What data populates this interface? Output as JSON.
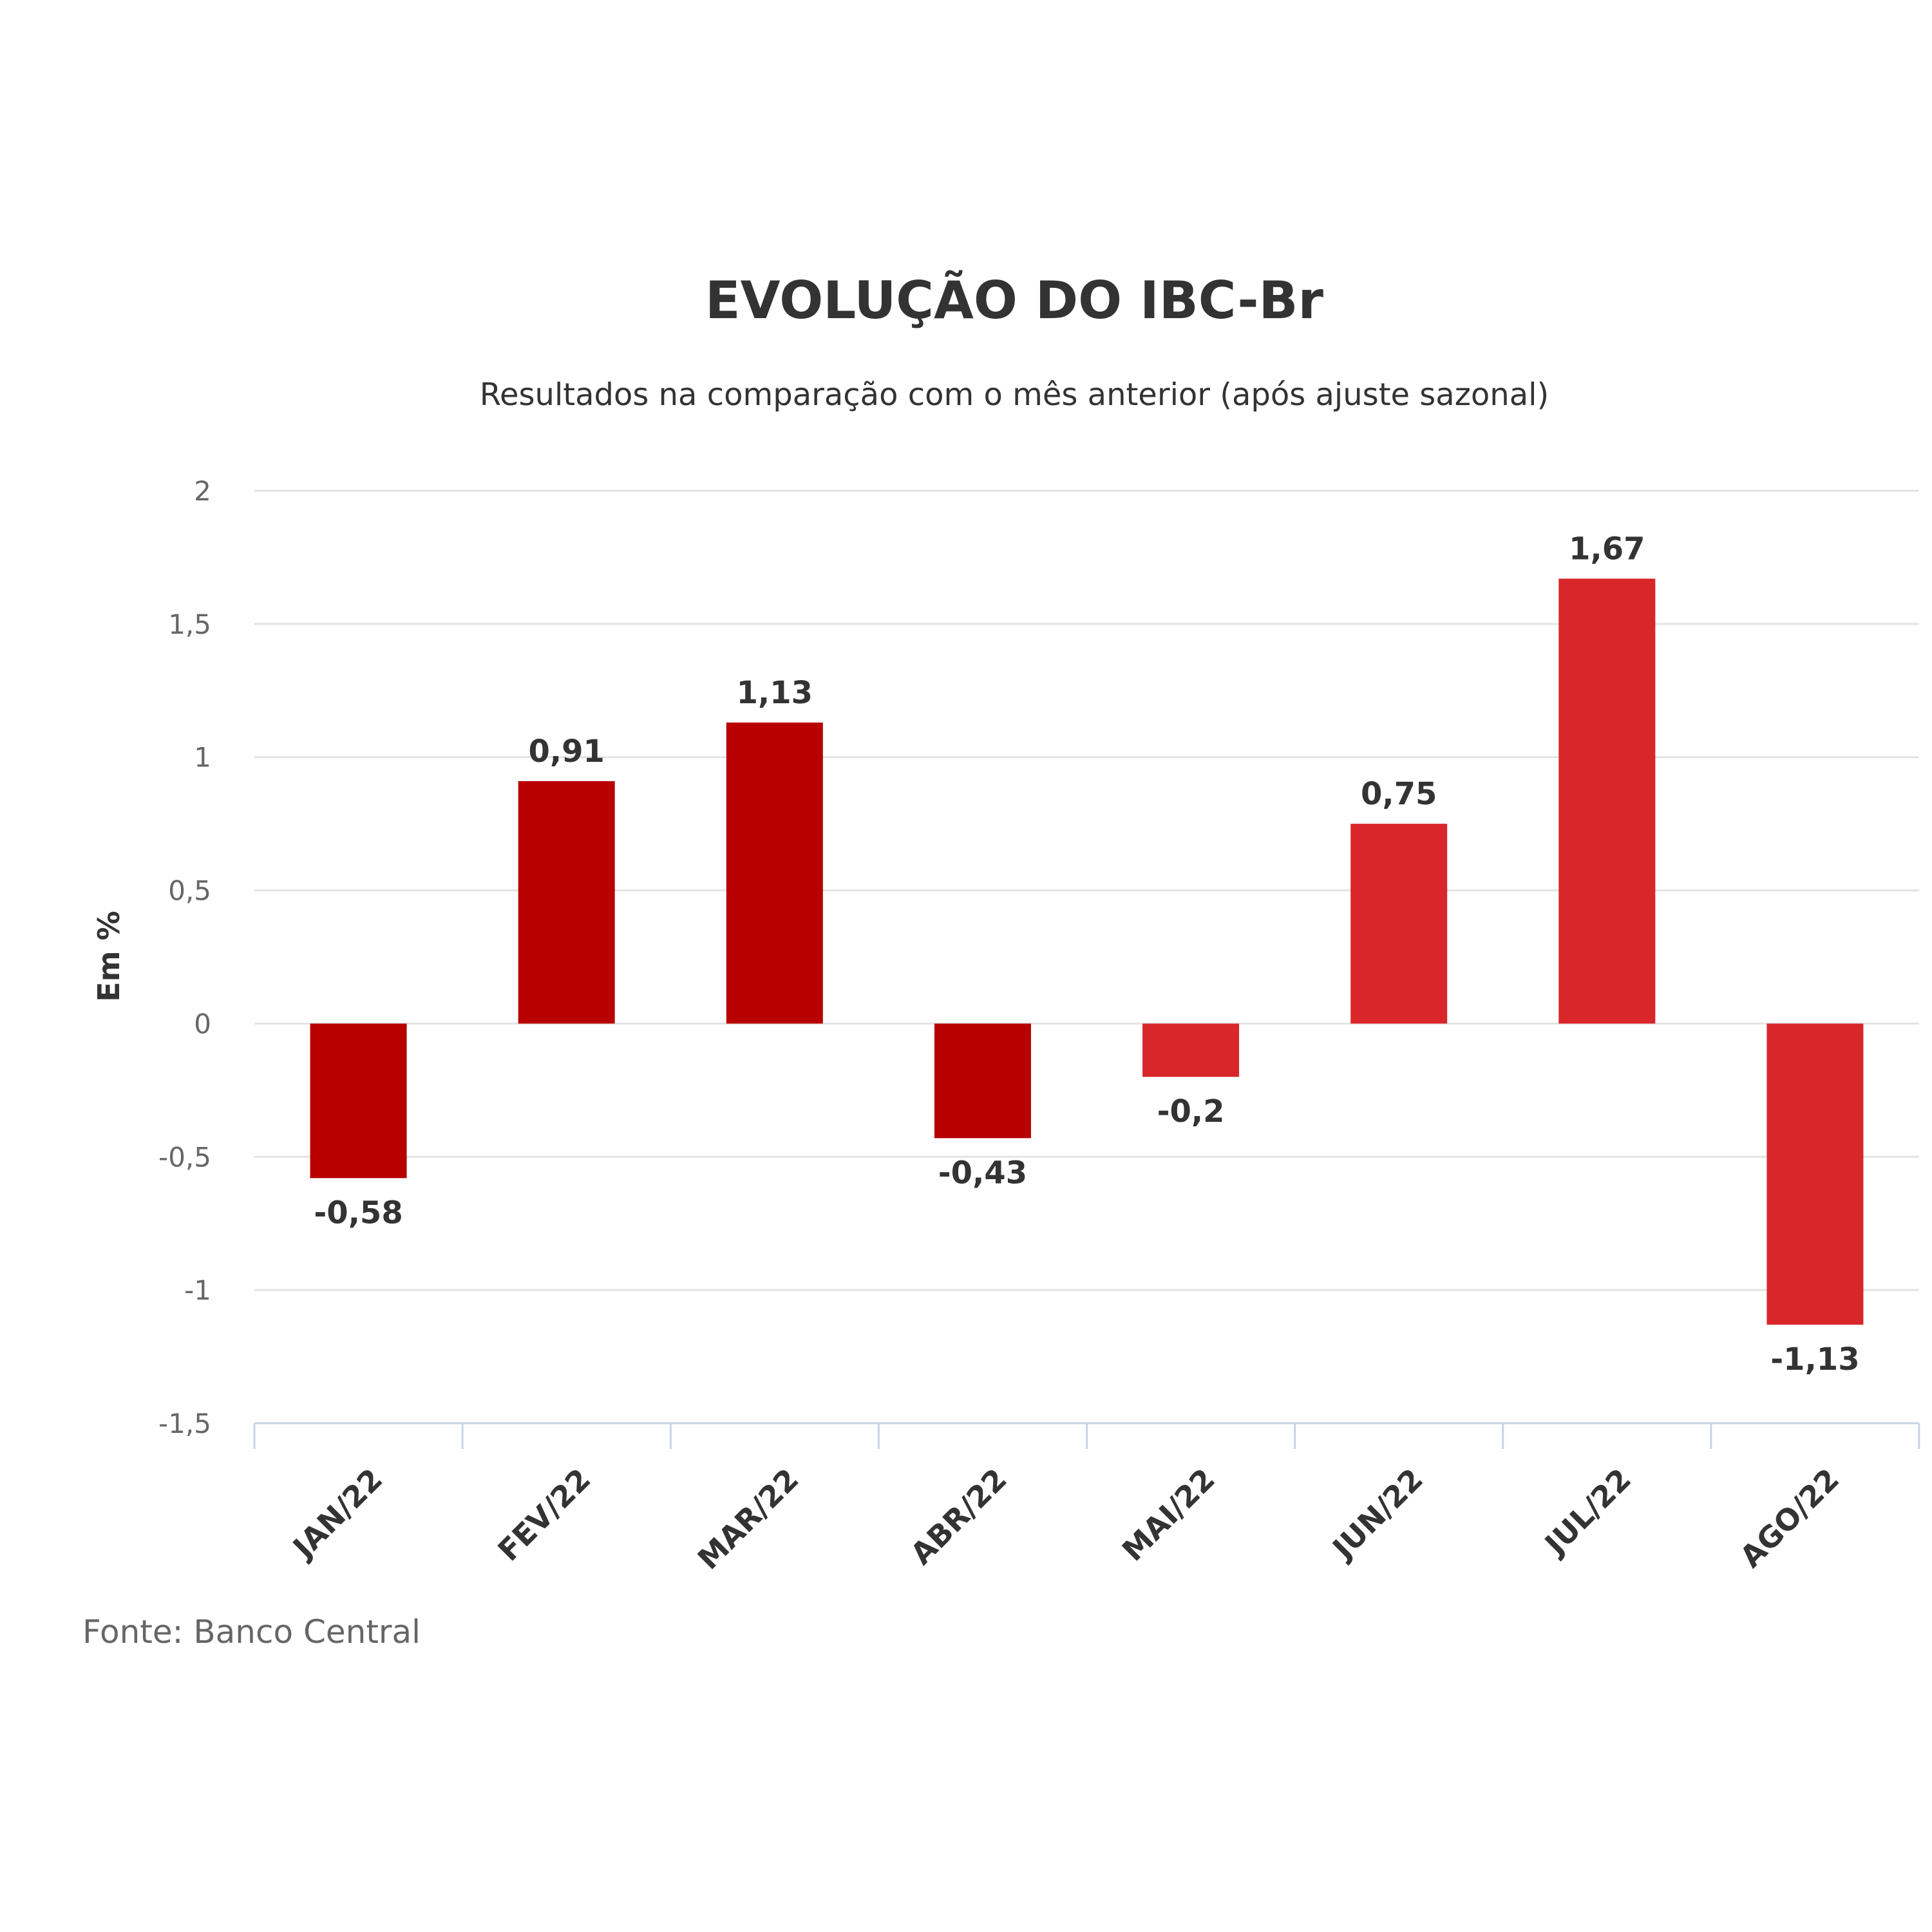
{
  "chart_data": {
    "type": "bar",
    "title": "EVOLUÇÃO DO IBC-Br",
    "subtitle": "Resultados na comparação com o mês anterior (após ajuste sazonal)",
    "ylabel": "Em %",
    "xlabel": "",
    "categories": [
      "JAN/22",
      "FEV/22",
      "MAR/22",
      "ABR/22",
      "MAI/22",
      "JUN/22",
      "JUL/22",
      "AGO/22"
    ],
    "values": [
      -0.58,
      0.91,
      1.13,
      -0.43,
      -0.2,
      0.75,
      1.67,
      -1.13
    ],
    "data_labels": [
      "-0,58",
      "0,91",
      "1,13",
      "-0,43",
      "-0,2",
      "0,75",
      "1,67",
      "-1,13"
    ],
    "bar_colors": [
      "#b80000",
      "#b80000",
      "#b80000",
      "#b80000",
      "#d9262a",
      "#d9262a",
      "#d9262a",
      "#d9262a"
    ],
    "ylim": [
      -1.5,
      2
    ],
    "yticks": [
      2,
      1.5,
      1,
      0.5,
      0,
      -0.5,
      -1,
      -1.5
    ],
    "ytick_labels": [
      "2",
      "1,5",
      "1",
      "0,5",
      "0",
      "-0,5",
      "-1",
      "-1,5"
    ],
    "grid": true,
    "legend": "none"
  },
  "source": "Fonte: Banco Central"
}
